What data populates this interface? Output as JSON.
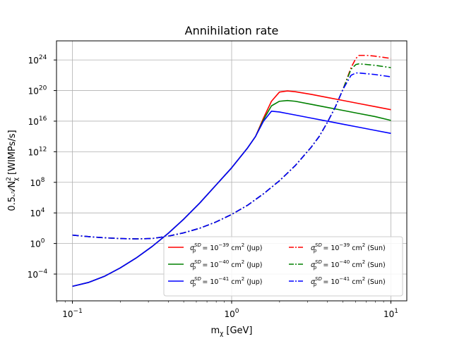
{
  "chart_data": {
    "type": "line",
    "title": "Annihilation rate",
    "xlabel": "m",
    "xlabel_sub": "χ",
    "xlabel_unit": "[GeV]",
    "ylabel": "0.5𝒜N",
    "ylabel_sup": "2",
    "ylabel_sub": "χ",
    "ylabel_unit": "[WIMPs/s]",
    "xscale": "log",
    "yscale": "log",
    "xlim_log10": [
      -1.1,
      1.1
    ],
    "ylim_log10": [
      -7.5,
      26.5
    ],
    "x_ticks": [
      {
        "base": "10",
        "exp": "−1",
        "log10": -1
      },
      {
        "base": "10",
        "exp": "0",
        "log10": 0
      },
      {
        "base": "10",
        "exp": "1",
        "log10": 1
      }
    ],
    "y_ticks": [
      {
        "base": "10",
        "exp": "−4",
        "log10": -4
      },
      {
        "base": "10",
        "exp": "0",
        "log10": 0
      },
      {
        "base": "10",
        "exp": "4",
        "log10": 4
      },
      {
        "base": "10",
        "exp": "8",
        "log10": 8
      },
      {
        "base": "10",
        "exp": "12",
        "log10": 12
      },
      {
        "base": "10",
        "exp": "16",
        "log10": 16
      },
      {
        "base": "10",
        "exp": "20",
        "log10": 20
      },
      {
        "base": "10",
        "exp": "24",
        "log10": 24
      }
    ],
    "grid": true,
    "legend_position": "lower-right",
    "series": [
      {
        "name": "σ_p^SD = 10^−39 cm^2 (Jup)",
        "legend": {
          "sym": "σ",
          "sup": "SD",
          "sub": "p",
          "eq": " = 10",
          "exp": "−39",
          "unit": " cm",
          "unit_exp": "2",
          "tag": " (Jup)"
        },
        "color": "#ff0000",
        "style": "solid",
        "points_log10": [
          [
            -1.0,
            -5.6
          ],
          [
            -0.9,
            -5.1
          ],
          [
            -0.8,
            -4.3
          ],
          [
            -0.7,
            -3.2
          ],
          [
            -0.6,
            -1.9
          ],
          [
            -0.5,
            -0.4
          ],
          [
            -0.4,
            1.3
          ],
          [
            -0.3,
            3.2
          ],
          [
            -0.2,
            5.3
          ],
          [
            -0.1,
            7.6
          ],
          [
            0.0,
            9.9
          ],
          [
            0.1,
            12.5
          ],
          [
            0.15,
            14.0
          ],
          [
            0.2,
            16.4
          ],
          [
            0.25,
            18.6
          ],
          [
            0.3,
            19.8
          ],
          [
            0.35,
            19.95
          ],
          [
            0.4,
            19.85
          ],
          [
            0.5,
            19.5
          ],
          [
            0.6,
            19.1
          ],
          [
            0.7,
            18.7
          ],
          [
            0.8,
            18.3
          ],
          [
            0.9,
            17.9
          ],
          [
            1.0,
            17.5
          ]
        ]
      },
      {
        "name": "σ_p^SD = 10^−40 cm^2 (Jup)",
        "legend": {
          "sym": "σ",
          "sup": "SD",
          "sub": "p",
          "eq": " = 10",
          "exp": "−40",
          "unit": " cm",
          "unit_exp": "2",
          "tag": " (Jup)"
        },
        "color": "#008000",
        "style": "solid",
        "points_log10": [
          [
            -1.0,
            -5.6
          ],
          [
            -0.9,
            -5.1
          ],
          [
            -0.8,
            -4.3
          ],
          [
            -0.7,
            -3.2
          ],
          [
            -0.6,
            -1.9
          ],
          [
            -0.5,
            -0.4
          ],
          [
            -0.4,
            1.3
          ],
          [
            -0.3,
            3.2
          ],
          [
            -0.2,
            5.3
          ],
          [
            -0.1,
            7.6
          ],
          [
            0.0,
            9.9
          ],
          [
            0.1,
            12.5
          ],
          [
            0.15,
            14.0
          ],
          [
            0.2,
            16.2
          ],
          [
            0.25,
            18.0
          ],
          [
            0.3,
            18.6
          ],
          [
            0.35,
            18.7
          ],
          [
            0.4,
            18.6
          ],
          [
            0.5,
            18.2
          ],
          [
            0.6,
            17.8
          ],
          [
            0.7,
            17.4
          ],
          [
            0.8,
            17.0
          ],
          [
            0.9,
            16.6
          ],
          [
            1.0,
            16.1
          ]
        ]
      },
      {
        "name": "σ_p^SD = 10^−41 cm^2 (Jup)",
        "legend": {
          "sym": "σ",
          "sup": "SD",
          "sub": "p",
          "eq": " = 10",
          "exp": "−41",
          "unit": " cm",
          "unit_exp": "2",
          "tag": " (Jup)"
        },
        "color": "#0000ff",
        "style": "solid",
        "points_log10": [
          [
            -1.0,
            -5.6
          ],
          [
            -0.9,
            -5.1
          ],
          [
            -0.8,
            -4.3
          ],
          [
            -0.7,
            -3.2
          ],
          [
            -0.6,
            -1.9
          ],
          [
            -0.5,
            -0.4
          ],
          [
            -0.4,
            1.3
          ],
          [
            -0.3,
            3.2
          ],
          [
            -0.2,
            5.3
          ],
          [
            -0.1,
            7.6
          ],
          [
            0.0,
            9.9
          ],
          [
            0.1,
            12.5
          ],
          [
            0.15,
            14.0
          ],
          [
            0.2,
            16.0
          ],
          [
            0.25,
            17.3
          ],
          [
            0.3,
            17.2
          ],
          [
            0.35,
            17.0
          ],
          [
            0.4,
            16.8
          ],
          [
            0.5,
            16.4
          ],
          [
            0.6,
            16.0
          ],
          [
            0.7,
            15.6
          ],
          [
            0.8,
            15.2
          ],
          [
            0.9,
            14.8
          ],
          [
            1.0,
            14.4
          ]
        ]
      },
      {
        "name": "σ_p^SD = 10^−39 cm^2 (Sun)",
        "legend": {
          "sym": "σ",
          "sup": "SD",
          "sub": "p",
          "eq": " = 10",
          "exp": "−39",
          "unit": " cm",
          "unit_exp": "2",
          "tag": " (Sun)"
        },
        "color": "#ff0000",
        "style": "dashdot",
        "points_log10": [
          [
            -1.0,
            1.1
          ],
          [
            -0.9,
            0.9
          ],
          [
            -0.8,
            0.75
          ],
          [
            -0.7,
            0.65
          ],
          [
            -0.6,
            0.6
          ],
          [
            -0.5,
            0.65
          ],
          [
            -0.4,
            0.95
          ],
          [
            -0.3,
            1.4
          ],
          [
            -0.2,
            2.0
          ],
          [
            -0.1,
            2.8
          ],
          [
            0.0,
            3.8
          ],
          [
            0.1,
            5.0
          ],
          [
            0.2,
            6.5
          ],
          [
            0.3,
            8.2
          ],
          [
            0.4,
            10.2
          ],
          [
            0.5,
            12.6
          ],
          [
            0.55,
            14.0
          ],
          [
            0.6,
            15.8
          ],
          [
            0.65,
            17.8
          ],
          [
            0.7,
            20.2
          ],
          [
            0.75,
            23.0
          ],
          [
            0.78,
            24.2
          ],
          [
            0.8,
            24.6
          ],
          [
            0.85,
            24.6
          ],
          [
            0.9,
            24.5
          ],
          [
            1.0,
            24.2
          ]
        ]
      },
      {
        "name": "σ_p^SD = 10^−40 cm^2 (Sun)",
        "legend": {
          "sym": "σ",
          "sup": "SD",
          "sub": "p",
          "eq": " = 10",
          "exp": "−40",
          "unit": " cm",
          "unit_exp": "2",
          "tag": " (Sun)"
        },
        "color": "#008000",
        "style": "dashdot",
        "points_log10": [
          [
            -1.0,
            1.1
          ],
          [
            -0.9,
            0.9
          ],
          [
            -0.8,
            0.75
          ],
          [
            -0.7,
            0.65
          ],
          [
            -0.6,
            0.6
          ],
          [
            -0.5,
            0.65
          ],
          [
            -0.4,
            0.95
          ],
          [
            -0.3,
            1.4
          ],
          [
            -0.2,
            2.0
          ],
          [
            -0.1,
            2.8
          ],
          [
            0.0,
            3.8
          ],
          [
            0.1,
            5.0
          ],
          [
            0.2,
            6.5
          ],
          [
            0.3,
            8.2
          ],
          [
            0.4,
            10.2
          ],
          [
            0.5,
            12.6
          ],
          [
            0.55,
            14.0
          ],
          [
            0.6,
            15.8
          ],
          [
            0.65,
            17.8
          ],
          [
            0.7,
            20.2
          ],
          [
            0.75,
            22.8
          ],
          [
            0.78,
            23.4
          ],
          [
            0.8,
            23.5
          ],
          [
            0.85,
            23.4
          ],
          [
            0.9,
            23.3
          ],
          [
            1.0,
            23.0
          ]
        ]
      },
      {
        "name": "σ_p^SD = 10^−41 cm^2 (Sun)",
        "legend": {
          "sym": "σ",
          "sup": "SD",
          "sub": "p",
          "eq": " = 10",
          "exp": "−41",
          "unit": " cm",
          "unit_exp": "2",
          "tag": " (Sun)"
        },
        "color": "#0000ff",
        "style": "dashdot",
        "points_log10": [
          [
            -1.0,
            1.1
          ],
          [
            -0.9,
            0.9
          ],
          [
            -0.8,
            0.75
          ],
          [
            -0.7,
            0.65
          ],
          [
            -0.6,
            0.6
          ],
          [
            -0.5,
            0.65
          ],
          [
            -0.4,
            0.95
          ],
          [
            -0.3,
            1.4
          ],
          [
            -0.2,
            2.0
          ],
          [
            -0.1,
            2.8
          ],
          [
            0.0,
            3.8
          ],
          [
            0.1,
            5.0
          ],
          [
            0.2,
            6.5
          ],
          [
            0.3,
            8.2
          ],
          [
            0.4,
            10.2
          ],
          [
            0.5,
            12.6
          ],
          [
            0.55,
            14.0
          ],
          [
            0.6,
            15.8
          ],
          [
            0.65,
            17.8
          ],
          [
            0.7,
            20.2
          ],
          [
            0.75,
            22.0
          ],
          [
            0.78,
            22.3
          ],
          [
            0.8,
            22.3
          ],
          [
            0.85,
            22.2
          ],
          [
            0.9,
            22.1
          ],
          [
            1.0,
            21.8
          ]
        ]
      }
    ]
  }
}
